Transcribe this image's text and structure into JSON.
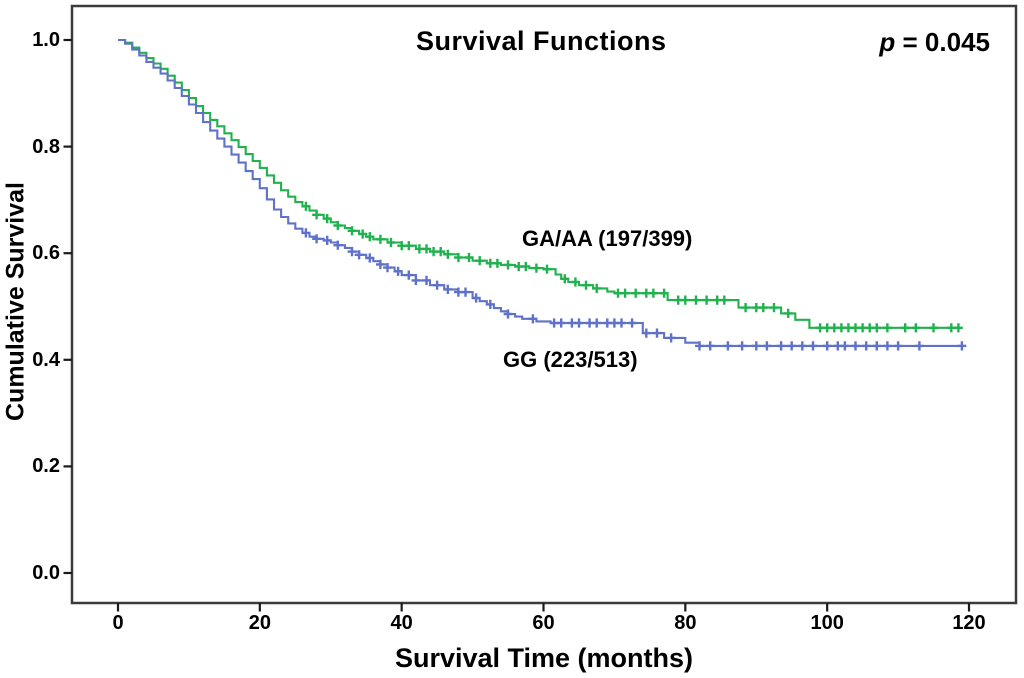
{
  "figure": {
    "title": "Survival Functions",
    "p_symbol": "p",
    "p_rest": " = 0.045",
    "x_axis_label": "Survival Time (months)",
    "y_axis_label": "Cumulative Survival"
  },
  "chart_data": {
    "type": "line",
    "subtype": "kaplan-meier-step-curves",
    "title": "Survival Functions",
    "annotation_p_value": "p = 0.045",
    "xlabel": "Survival Time (months)",
    "ylabel": "Cumulative Survival",
    "xlim": [
      0,
      120
    ],
    "ylim": [
      0.0,
      1.0
    ],
    "grid": false,
    "legend": "inline-labels-on-plot",
    "x_ticks": [
      {
        "value": 0,
        "label": "0"
      },
      {
        "value": 20,
        "label": "20"
      },
      {
        "value": 40,
        "label": "40"
      },
      {
        "value": 60,
        "label": "60"
      },
      {
        "value": 80,
        "label": "80"
      },
      {
        "value": 100,
        "label": "100"
      },
      {
        "value": 120,
        "label": "120"
      }
    ],
    "y_ticks": [
      {
        "value": 1.0,
        "label": "1.0"
      },
      {
        "value": 0.8,
        "label": "0.8"
      },
      {
        "value": 0.6,
        "label": "0.6"
      },
      {
        "value": 0.4,
        "label": "0.4"
      },
      {
        "value": 0.2,
        "label": "0.2"
      },
      {
        "value": 0.0,
        "label": "0.0"
      }
    ],
    "frame_color": "#3b3b3b",
    "tick_color": "#1a1a1a",
    "series": [
      {
        "name": "GA/AA (197/399)",
        "color": "#21b14e",
        "points": [
          [
            0,
            1.0
          ],
          [
            1,
            0.995
          ],
          [
            2,
            0.986
          ],
          [
            3,
            0.976
          ],
          [
            4,
            0.966
          ],
          [
            5,
            0.956
          ],
          [
            6,
            0.946
          ],
          [
            7,
            0.933
          ],
          [
            8,
            0.92
          ],
          [
            9,
            0.906
          ],
          [
            10,
            0.891
          ],
          [
            11,
            0.876
          ],
          [
            12,
            0.863
          ],
          [
            13,
            0.85
          ],
          [
            14,
            0.838
          ],
          [
            15,
            0.825
          ],
          [
            16,
            0.812
          ],
          [
            17,
            0.799
          ],
          [
            18,
            0.786
          ],
          [
            19,
            0.773
          ],
          [
            20,
            0.76
          ],
          [
            21,
            0.746
          ],
          [
            22,
            0.732
          ],
          [
            23,
            0.718
          ],
          [
            24,
            0.706
          ],
          [
            25,
            0.696
          ],
          [
            26,
            0.688
          ],
          [
            27,
            0.68
          ],
          [
            28,
            0.672
          ],
          [
            29,
            0.665
          ],
          [
            30,
            0.658
          ],
          [
            31,
            0.652
          ],
          [
            32,
            0.647
          ],
          [
            33,
            0.642
          ],
          [
            34,
            0.636
          ],
          [
            35,
            0.631
          ],
          [
            36,
            0.626
          ],
          [
            38,
            0.62
          ],
          [
            40,
            0.614
          ],
          [
            42,
            0.608
          ],
          [
            44,
            0.603
          ],
          [
            46,
            0.598
          ],
          [
            48,
            0.592
          ],
          [
            50,
            0.586
          ],
          [
            52,
            0.581
          ],
          [
            54,
            0.578
          ],
          [
            56,
            0.575
          ],
          [
            58,
            0.572
          ],
          [
            60,
            0.57
          ],
          [
            61.7,
            0.56
          ],
          [
            62.5,
            0.552
          ],
          [
            63.5,
            0.546
          ],
          [
            65,
            0.54
          ],
          [
            67,
            0.534
          ],
          [
            69,
            0.528
          ],
          [
            70,
            0.525
          ],
          [
            77.5,
            0.512
          ],
          [
            87.5,
            0.498
          ],
          [
            93.5,
            0.487
          ],
          [
            95.5,
            0.475
          ],
          [
            97.5,
            0.46
          ],
          [
            118.5,
            0.46
          ]
        ],
        "censor_times": [
          26.5,
          28,
          29.5,
          31,
          33,
          34.5,
          35.5,
          37,
          38.5,
          40,
          41,
          42.5,
          43.5,
          44.5,
          45.5,
          46.5,
          48,
          49.5,
          51,
          52.5,
          53.5,
          55,
          56.5,
          57.5,
          59,
          60.5,
          63,
          64.5,
          66,
          67.5,
          70.5,
          71.5,
          73,
          74.5,
          75.5,
          77,
          79,
          80,
          81.5,
          83,
          84.5,
          85.5,
          88.5,
          90,
          91,
          92.5,
          94.5,
          99,
          100,
          101,
          102,
          103,
          104,
          105,
          106,
          107,
          108.5,
          111,
          112.5,
          115,
          117.5,
          118.5
        ]
      },
      {
        "name": "GG (223/513)",
        "color": "#5f72c8",
        "points": [
          [
            0,
            1.0
          ],
          [
            1,
            0.993
          ],
          [
            2,
            0.982
          ],
          [
            3,
            0.971
          ],
          [
            4,
            0.959
          ],
          [
            5,
            0.948
          ],
          [
            6,
            0.937
          ],
          [
            7,
            0.924
          ],
          [
            8,
            0.91
          ],
          [
            9,
            0.895
          ],
          [
            10,
            0.879
          ],
          [
            11,
            0.863
          ],
          [
            12,
            0.846
          ],
          [
            13,
            0.83
          ],
          [
            14,
            0.815
          ],
          [
            15,
            0.8
          ],
          [
            16,
            0.785
          ],
          [
            17,
            0.77
          ],
          [
            18,
            0.754
          ],
          [
            19,
            0.739
          ],
          [
            20,
            0.722
          ],
          [
            21,
            0.701
          ],
          [
            22,
            0.682
          ],
          [
            23,
            0.668
          ],
          [
            24,
            0.656
          ],
          [
            25,
            0.646
          ],
          [
            26,
            0.638
          ],
          [
            27,
            0.631
          ],
          [
            28,
            0.627
          ],
          [
            29,
            0.624
          ],
          [
            30,
            0.62
          ],
          [
            31,
            0.615
          ],
          [
            32,
            0.61
          ],
          [
            33,
            0.603
          ],
          [
            34,
            0.597
          ],
          [
            35,
            0.591
          ],
          [
            36,
            0.585
          ],
          [
            37,
            0.579
          ],
          [
            38,
            0.573
          ],
          [
            39,
            0.566
          ],
          [
            40,
            0.559
          ],
          [
            42,
            0.549
          ],
          [
            44,
            0.54
          ],
          [
            46,
            0.532
          ],
          [
            48,
            0.527
          ],
          [
            50,
            0.516
          ],
          [
            51,
            0.51
          ],
          [
            52,
            0.504
          ],
          [
            53,
            0.497
          ],
          [
            54,
            0.491
          ],
          [
            55,
            0.486
          ],
          [
            56,
            0.481
          ],
          [
            57,
            0.477
          ],
          [
            59,
            0.472
          ],
          [
            61,
            0.469
          ],
          [
            74,
            0.45
          ],
          [
            77,
            0.441
          ],
          [
            80,
            0.432
          ],
          [
            82,
            0.426
          ],
          [
            119.5,
            0.426
          ]
        ],
        "censor_times": [
          26.5,
          28,
          29.5,
          31,
          33,
          34,
          35.5,
          37,
          38,
          39.5,
          41,
          42,
          43.5,
          45,
          46.5,
          48,
          49,
          50.5,
          52.5,
          55,
          58.5,
          61.5,
          62.5,
          64,
          65,
          66.5,
          67.5,
          69,
          70,
          71,
          72.5,
          74.5,
          76,
          78,
          82,
          83.5,
          86,
          88,
          90,
          91.5,
          93.5,
          95,
          96.5,
          98,
          100,
          101.5,
          102.5,
          104,
          105.5,
          107,
          108.5,
          110,
          113,
          119
        ]
      }
    ]
  }
}
